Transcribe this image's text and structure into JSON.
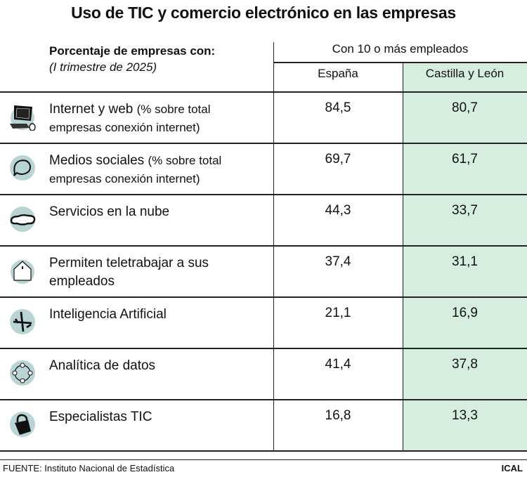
{
  "title": "Uso de TIC y comercio electrónico en las empresas",
  "subtitle": "Porcentaje de empresas con:",
  "period": "(I trimestre de 2025)",
  "column_group": "Con 10 o más empleados",
  "colors": {
    "highlight": "#d6eedf",
    "icon_circle": "#b8d4d4"
  },
  "chart_data": {
    "type": "table",
    "columns": [
      "España",
      "Castilla y León"
    ],
    "rows": [
      {
        "label": "Internet y web",
        "note": "(% sobre total empresas conexión internet)",
        "icon": "computer-icon",
        "values": [
          "84,5",
          "80,7"
        ]
      },
      {
        "label": "Medios sociales",
        "note": "(% sobre total empresas conexión internet)",
        "icon": "speech-bubble-icon",
        "values": [
          "69,7",
          "61,7"
        ]
      },
      {
        "label": "Servicios en la nube",
        "note": "",
        "icon": "cloud-icon",
        "values": [
          "44,3",
          "33,7"
        ]
      },
      {
        "label": "Permiten teletrabajar a sus empleados",
        "note": "",
        "icon": "house-icon",
        "values": [
          "37,4",
          "31,1"
        ]
      },
      {
        "label": "Inteligencia Artificial",
        "note": "",
        "icon": "tools-icon",
        "values": [
          "21,1",
          "16,9"
        ]
      },
      {
        "label": "Analítica de datos",
        "note": "",
        "icon": "network-circle-icon",
        "values": [
          "41,4",
          "37,8"
        ]
      },
      {
        "label": "Especialistas TIC",
        "note": "",
        "icon": "padlock-icon",
        "values": [
          "16,8",
          "13,3"
        ]
      }
    ]
  },
  "footer": "FUENTE: Instituto Nacional de Estadística",
  "brand": "ICAL"
}
